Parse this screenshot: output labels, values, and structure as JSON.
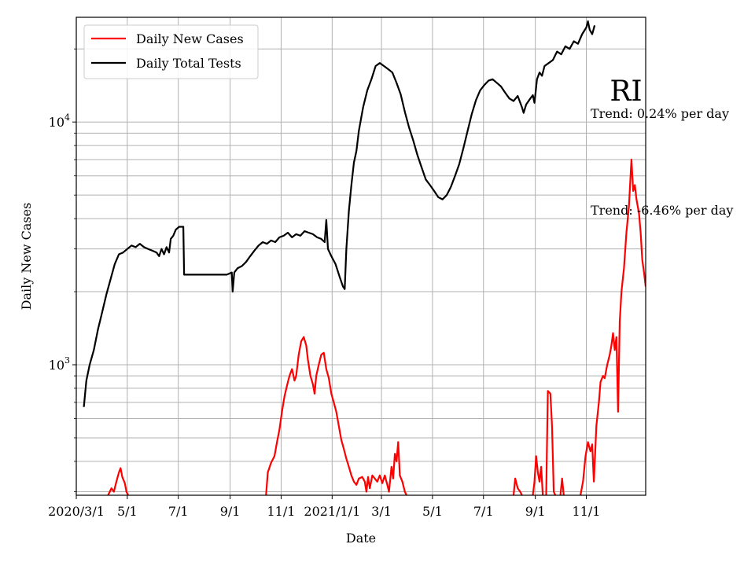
{
  "chart_data": {
    "type": "line",
    "title": "",
    "xlabel": "Date",
    "ylabel": "Daily New Cases",
    "y_scale": "log",
    "ylim": [
      290,
      27000
    ],
    "xlim": [
      "2020-03-01",
      "2022-01-11"
    ],
    "x_ticks": [
      {
        "date": "2020-03-01",
        "label": "2020/3/1"
      },
      {
        "date": "2020-05-01",
        "label": "5/1"
      },
      {
        "date": "2020-07-01",
        "label": "7/1"
      },
      {
        "date": "2020-09-01",
        "label": "9/1"
      },
      {
        "date": "2020-11-01",
        "label": "11/1"
      },
      {
        "date": "2021-01-01",
        "label": "2021/1/1"
      },
      {
        "date": "2021-03-01",
        "label": "3/1"
      },
      {
        "date": "2021-05-01",
        "label": "5/1"
      },
      {
        "date": "2021-07-01",
        "label": "7/1"
      },
      {
        "date": "2021-09-01",
        "label": "9/1"
      },
      {
        "date": "2021-11-01",
        "label": "11/1"
      }
    ],
    "y_major_ticks": [
      {
        "value": 1000,
        "base": "10",
        "exp": "3"
      },
      {
        "value": 10000,
        "base": "10",
        "exp": "4"
      }
    ],
    "y_minor_ticks": [
      300,
      400,
      500,
      600,
      700,
      800,
      900,
      2000,
      3000,
      4000,
      5000,
      6000,
      7000,
      8000,
      9000,
      20000
    ],
    "grid": true,
    "legend_position": "top-left",
    "series": [
      {
        "name": "Daily New Cases",
        "color": "#ff0000",
        "points": [
          [
            "2020-04-08",
            290
          ],
          [
            "2020-04-12",
            310
          ],
          [
            "2020-04-15",
            300
          ],
          [
            "2020-04-18",
            330
          ],
          [
            "2020-04-21",
            360
          ],
          [
            "2020-04-23",
            375
          ],
          [
            "2020-04-25",
            345
          ],
          [
            "2020-04-28",
            325
          ],
          [
            "2020-04-30",
            300
          ],
          [
            "2020-05-02",
            290
          ],
          null,
          [
            "2020-10-14",
            290
          ],
          [
            "2020-10-16",
            360
          ],
          [
            "2020-10-20",
            395
          ],
          [
            "2020-10-24",
            420
          ],
          [
            "2020-10-27",
            480
          ],
          [
            "2020-10-30",
            540
          ],
          [
            "2020-11-02",
            640
          ],
          [
            "2020-11-05",
            740
          ],
          [
            "2020-11-08",
            820
          ],
          [
            "2020-11-11",
            900
          ],
          [
            "2020-11-14",
            960
          ],
          [
            "2020-11-17",
            860
          ],
          [
            "2020-11-19",
            900
          ],
          [
            "2020-11-22",
            1100
          ],
          [
            "2020-11-25",
            1250
          ],
          [
            "2020-11-28",
            1300
          ],
          [
            "2020-12-01",
            1200
          ],
          [
            "2020-12-03",
            1050
          ],
          [
            "2020-12-06",
            900
          ],
          [
            "2020-12-09",
            830
          ],
          [
            "2020-12-11",
            760
          ],
          [
            "2020-12-13",
            900
          ],
          [
            "2020-12-16",
            1000
          ],
          [
            "2020-12-19",
            1100
          ],
          [
            "2020-12-22",
            1120
          ],
          [
            "2020-12-25",
            960
          ],
          [
            "2020-12-28",
            880
          ],
          [
            "2020-12-31",
            760
          ],
          [
            "2021-01-03",
            700
          ],
          [
            "2021-01-06",
            640
          ],
          [
            "2021-01-09",
            560
          ],
          [
            "2021-01-12",
            490
          ],
          [
            "2021-01-15",
            450
          ],
          [
            "2021-01-18",
            410
          ],
          [
            "2021-01-21",
            380
          ],
          [
            "2021-01-24",
            350
          ],
          [
            "2021-01-27",
            330
          ],
          [
            "2021-01-30",
            320
          ],
          [
            "2021-02-02",
            340
          ],
          [
            "2021-02-06",
            345
          ],
          [
            "2021-02-09",
            330
          ],
          [
            "2021-02-11",
            300
          ],
          [
            "2021-02-13",
            345
          ],
          [
            "2021-02-15",
            310
          ],
          [
            "2021-02-18",
            350
          ],
          [
            "2021-02-21",
            340
          ],
          [
            "2021-02-24",
            330
          ],
          [
            "2021-02-27",
            350
          ],
          [
            "2021-03-02",
            325
          ],
          [
            "2021-03-05",
            350
          ],
          [
            "2021-03-08",
            320
          ],
          [
            "2021-03-10",
            300
          ],
          [
            "2021-03-13",
            380
          ],
          [
            "2021-03-15",
            340
          ],
          [
            "2021-03-17",
            430
          ],
          [
            "2021-03-19",
            400
          ],
          [
            "2021-03-21",
            480
          ],
          [
            "2021-03-23",
            350
          ],
          [
            "2021-03-26",
            330
          ],
          [
            "2021-03-29",
            300
          ],
          [
            "2021-03-31",
            290
          ],
          null,
          [
            "2021-08-06",
            290
          ],
          [
            "2021-08-08",
            340
          ],
          [
            "2021-08-11",
            310
          ],
          [
            "2021-08-14",
            300
          ],
          [
            "2021-08-16",
            290
          ],
          null,
          [
            "2021-08-29",
            290
          ],
          [
            "2021-08-31",
            330
          ],
          [
            "2021-09-02",
            420
          ],
          [
            "2021-09-04",
            360
          ],
          [
            "2021-09-06",
            330
          ],
          [
            "2021-09-08",
            380
          ],
          [
            "2021-09-10",
            290
          ],
          null,
          [
            "2021-09-14",
            290
          ],
          [
            "2021-09-16",
            780
          ],
          [
            "2021-09-19",
            760
          ],
          [
            "2021-09-21",
            560
          ],
          [
            "2021-09-23",
            300
          ],
          [
            "2021-09-25",
            290
          ],
          null,
          [
            "2021-10-01",
            290
          ],
          [
            "2021-10-03",
            340
          ],
          [
            "2021-10-05",
            290
          ],
          null,
          [
            "2021-10-25",
            290
          ],
          [
            "2021-10-28",
            330
          ],
          [
            "2021-10-31",
            420
          ],
          [
            "2021-11-03",
            480
          ],
          [
            "2021-11-06",
            440
          ],
          [
            "2021-11-08",
            470
          ],
          [
            "2021-11-10",
            330
          ],
          [
            "2021-11-13",
            560
          ],
          [
            "2021-11-16",
            700
          ],
          [
            "2021-11-18",
            850
          ],
          [
            "2021-11-21",
            900
          ],
          [
            "2021-11-23",
            880
          ],
          [
            "2021-11-26",
            1000
          ],
          [
            "2021-11-29",
            1100
          ],
          [
            "2021-12-01",
            1200
          ],
          [
            "2021-12-03",
            1350
          ],
          [
            "2021-12-05",
            1150
          ],
          [
            "2021-12-07",
            1300
          ],
          [
            "2021-12-09",
            640
          ],
          [
            "2021-12-11",
            1500
          ],
          [
            "2021-12-13",
            2000
          ],
          [
            "2021-12-16",
            2500
          ],
          [
            "2021-12-19",
            3500
          ],
          [
            "2021-12-22",
            4500
          ],
          [
            "2021-12-25",
            7000
          ],
          [
            "2021-12-27",
            5200
          ],
          [
            "2021-12-29",
            5500
          ],
          [
            "2021-12-31",
            4800
          ],
          [
            "2022-01-03",
            4200
          ],
          [
            "2022-01-05",
            3500
          ],
          [
            "2022-01-07",
            2700
          ],
          [
            "2022-01-09",
            2400
          ],
          [
            "2022-01-11",
            2100
          ]
        ]
      },
      {
        "name": "Daily Total Tests",
        "color": "#000000",
        "points": [
          [
            "2020-03-10",
            670
          ],
          [
            "2020-03-13",
            860
          ],
          [
            "2020-03-17",
            1000
          ],
          [
            "2020-03-22",
            1150
          ],
          [
            "2020-03-27",
            1400
          ],
          [
            "2020-04-01",
            1650
          ],
          [
            "2020-04-06",
            1950
          ],
          [
            "2020-04-11",
            2250
          ],
          [
            "2020-04-16",
            2600
          ],
          [
            "2020-04-21",
            2850
          ],
          [
            "2020-04-26",
            2900
          ],
          [
            "2020-05-01",
            3000
          ],
          [
            "2020-05-06",
            3100
          ],
          [
            "2020-05-11",
            3050
          ],
          [
            "2020-05-16",
            3150
          ],
          [
            "2020-05-21",
            3050
          ],
          [
            "2020-05-26",
            3000
          ],
          [
            "2020-05-31",
            2950
          ],
          [
            "2020-06-05",
            2900
          ],
          [
            "2020-06-08",
            2800
          ],
          [
            "2020-06-11",
            3000
          ],
          [
            "2020-06-14",
            2850
          ],
          [
            "2020-06-17",
            3050
          ],
          [
            "2020-06-20",
            2900
          ],
          [
            "2020-06-22",
            3300
          ],
          [
            "2020-06-25",
            3400
          ],
          [
            "2020-06-28",
            3600
          ],
          [
            "2020-07-02",
            3700
          ],
          [
            "2020-07-07",
            3700
          ],
          [
            "2020-07-08",
            2350
          ],
          [
            "2020-08-28",
            2350
          ],
          [
            "2020-09-03",
            2400
          ],
          [
            "2020-09-04",
            2000
          ],
          [
            "2020-09-06",
            2400
          ],
          [
            "2020-09-10",
            2500
          ],
          [
            "2020-09-15",
            2550
          ],
          [
            "2020-09-20",
            2650
          ],
          [
            "2020-09-25",
            2800
          ],
          [
            "2020-09-30",
            2950
          ],
          [
            "2020-10-05",
            3100
          ],
          [
            "2020-10-10",
            3200
          ],
          [
            "2020-10-15",
            3150
          ],
          [
            "2020-10-20",
            3250
          ],
          [
            "2020-10-25",
            3200
          ],
          [
            "2020-10-30",
            3350
          ],
          [
            "2020-11-04",
            3400
          ],
          [
            "2020-11-09",
            3500
          ],
          [
            "2020-11-14",
            3350
          ],
          [
            "2020-11-19",
            3450
          ],
          [
            "2020-11-24",
            3400
          ],
          [
            "2020-11-29",
            3550
          ],
          [
            "2020-12-04",
            3500
          ],
          [
            "2020-12-09",
            3450
          ],
          [
            "2020-12-14",
            3350
          ],
          [
            "2020-12-19",
            3300
          ],
          [
            "2020-12-23",
            3200
          ],
          [
            "2020-12-25",
            3950
          ],
          [
            "2020-12-27",
            3000
          ],
          [
            "2020-12-31",
            2800
          ],
          [
            "2021-01-05",
            2600
          ],
          [
            "2021-01-10",
            2300
          ],
          [
            "2021-01-14",
            2100
          ],
          [
            "2021-01-16",
            2050
          ],
          [
            "2021-01-18",
            3000
          ],
          [
            "2021-01-21",
            4300
          ],
          [
            "2021-01-24",
            5500
          ],
          [
            "2021-01-27",
            6800
          ],
          [
            "2021-01-30",
            7600
          ],
          [
            "2021-02-02",
            9200
          ],
          [
            "2021-02-07",
            11500
          ],
          [
            "2021-02-12",
            13500
          ],
          [
            "2021-02-17",
            15000
          ],
          [
            "2021-02-22",
            17000
          ],
          [
            "2021-02-27",
            17500
          ],
          [
            "2021-03-04",
            17000
          ],
          [
            "2021-03-09",
            16500
          ],
          [
            "2021-03-14",
            16000
          ],
          [
            "2021-03-19",
            14500
          ],
          [
            "2021-03-24",
            13000
          ],
          [
            "2021-03-29",
            11000
          ],
          [
            "2021-04-03",
            9500
          ],
          [
            "2021-04-08",
            8400
          ],
          [
            "2021-04-13",
            7300
          ],
          [
            "2021-04-18",
            6500
          ],
          [
            "2021-04-23",
            5800
          ],
          [
            "2021-04-28",
            5500
          ],
          [
            "2021-05-03",
            5200
          ],
          [
            "2021-05-08",
            4900
          ],
          [
            "2021-05-13",
            4800
          ],
          [
            "2021-05-18",
            5000
          ],
          [
            "2021-05-23",
            5400
          ],
          [
            "2021-05-28",
            6000
          ],
          [
            "2021-06-02",
            6700
          ],
          [
            "2021-06-07",
            7800
          ],
          [
            "2021-06-12",
            9200
          ],
          [
            "2021-06-17",
            10800
          ],
          [
            "2021-06-22",
            12300
          ],
          [
            "2021-06-27",
            13500
          ],
          [
            "2021-07-02",
            14200
          ],
          [
            "2021-07-07",
            14800
          ],
          [
            "2021-07-12",
            15000
          ],
          [
            "2021-07-17",
            14500
          ],
          [
            "2021-07-22",
            14000
          ],
          [
            "2021-07-27",
            13200
          ],
          [
            "2021-08-01",
            12500
          ],
          [
            "2021-08-06",
            12200
          ],
          [
            "2021-08-11",
            12800
          ],
          [
            "2021-08-16",
            11500
          ],
          [
            "2021-08-18",
            10900
          ],
          [
            "2021-08-21",
            11800
          ],
          [
            "2021-08-26",
            12500
          ],
          [
            "2021-08-29",
            12900
          ],
          [
            "2021-08-31",
            12000
          ],
          [
            "2021-09-03",
            15000
          ],
          [
            "2021-09-06",
            16000
          ],
          [
            "2021-09-09",
            15500
          ],
          [
            "2021-09-12",
            17000
          ],
          [
            "2021-09-17",
            17500
          ],
          [
            "2021-09-22",
            18000
          ],
          [
            "2021-09-27",
            19500
          ],
          [
            "2021-10-02",
            19000
          ],
          [
            "2021-10-07",
            20500
          ],
          [
            "2021-10-12",
            20000
          ],
          [
            "2021-10-17",
            21500
          ],
          [
            "2021-10-22",
            21000
          ],
          [
            "2021-10-27",
            23000
          ],
          [
            "2021-11-01",
            24500
          ],
          [
            "2021-11-03",
            26000
          ],
          [
            "2021-11-05",
            24000
          ],
          [
            "2021-11-08",
            23000
          ],
          [
            "2021-11-11",
            25000
          ]
        ]
      }
    ],
    "annotations": [
      {
        "text": "RI"
      },
      {
        "text": "Trend: 0.24% per day"
      },
      {
        "text": "Trend: -6.46% per day"
      }
    ]
  }
}
